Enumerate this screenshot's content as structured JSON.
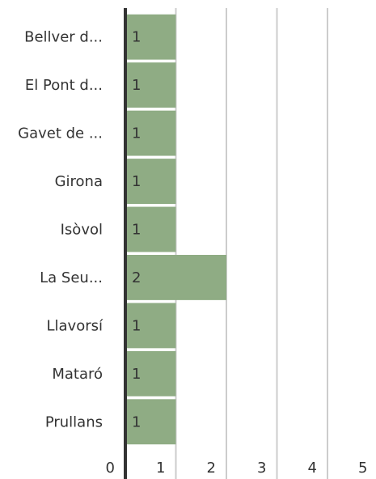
{
  "chart_data": {
    "type": "bar",
    "orientation": "horizontal",
    "categories": [
      "Bellver d...",
      "El Pont d...",
      "Gavet de ...",
      "Girona",
      "Isòvol",
      "La Seu...",
      "Llavorsí",
      "Mataró",
      "Prullans"
    ],
    "values": [
      1,
      1,
      1,
      1,
      1,
      2,
      1,
      1,
      1
    ],
    "color": "#8fac84",
    "xlim": [
      0,
      5
    ],
    "xticks": [
      0,
      1,
      2,
      3,
      4,
      5
    ],
    "grid": true
  }
}
